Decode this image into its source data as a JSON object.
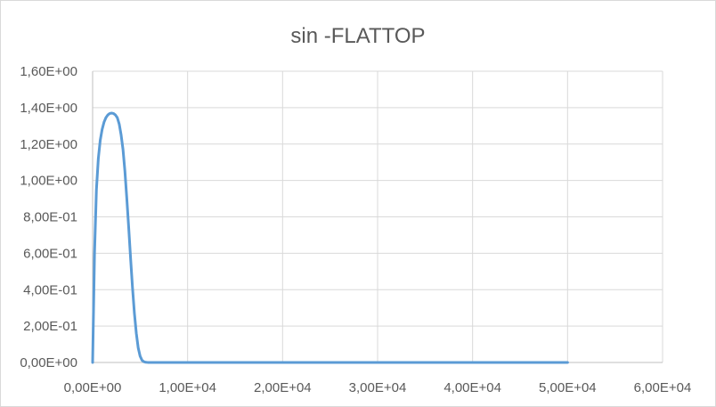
{
  "chart_data": {
    "type": "line",
    "title": "sin -FLATTOP",
    "xlabel": "",
    "ylabel": "",
    "xlim": [
      0,
      60000
    ],
    "ylim": [
      0,
      1.6
    ],
    "x_ticks": [
      0,
      10000,
      20000,
      30000,
      40000,
      50000,
      60000
    ],
    "x_tick_labels": [
      "0,00E+00",
      "1,00E+04",
      "2,00E+04",
      "3,00E+04",
      "4,00E+04",
      "5,00E+04",
      "6,00E+04"
    ],
    "y_ticks": [
      0,
      0.2,
      0.4,
      0.6,
      0.8,
      1.0,
      1.2,
      1.4,
      1.6
    ],
    "y_tick_labels": [
      "0,00E+00",
      "2,00E-01",
      "4,00E-01",
      "6,00E-01",
      "8,00E-01",
      "1,00E+00",
      "1,20E+00",
      "1,40E+00",
      "1,60E+00"
    ],
    "grid": true,
    "legend": "none",
    "series": [
      {
        "color": "#5b9bd5",
        "x": [
          0,
          100,
          200,
          400,
          600,
          800,
          1000,
          1200,
          1400,
          1600,
          1800,
          2000,
          2200,
          2400,
          2600,
          2800,
          3000,
          3200,
          3400,
          3600,
          3800,
          4000,
          4200,
          4400,
          4600,
          4800,
          5000,
          5200,
          5400,
          5600,
          5800,
          6000,
          6200,
          6500,
          7000,
          8000,
          10000,
          12000,
          15000,
          20000,
          25000,
          30000,
          35000,
          40000,
          45000,
          50000
        ],
        "values": [
          0.0,
          0.3,
          0.6,
          0.95,
          1.12,
          1.22,
          1.28,
          1.32,
          1.345,
          1.36,
          1.368,
          1.37,
          1.368,
          1.36,
          1.345,
          1.31,
          1.25,
          1.17,
          1.05,
          0.9,
          0.74,
          0.57,
          0.41,
          0.27,
          0.16,
          0.08,
          0.035,
          0.012,
          0.004,
          0.001,
          0.0003,
          0.0,
          0.0,
          0.0,
          0.0,
          0.0,
          0.0,
          0.0,
          0.0,
          0.0,
          0.0,
          0.0,
          0.0,
          0.0,
          0.0,
          0.0
        ]
      }
    ]
  }
}
